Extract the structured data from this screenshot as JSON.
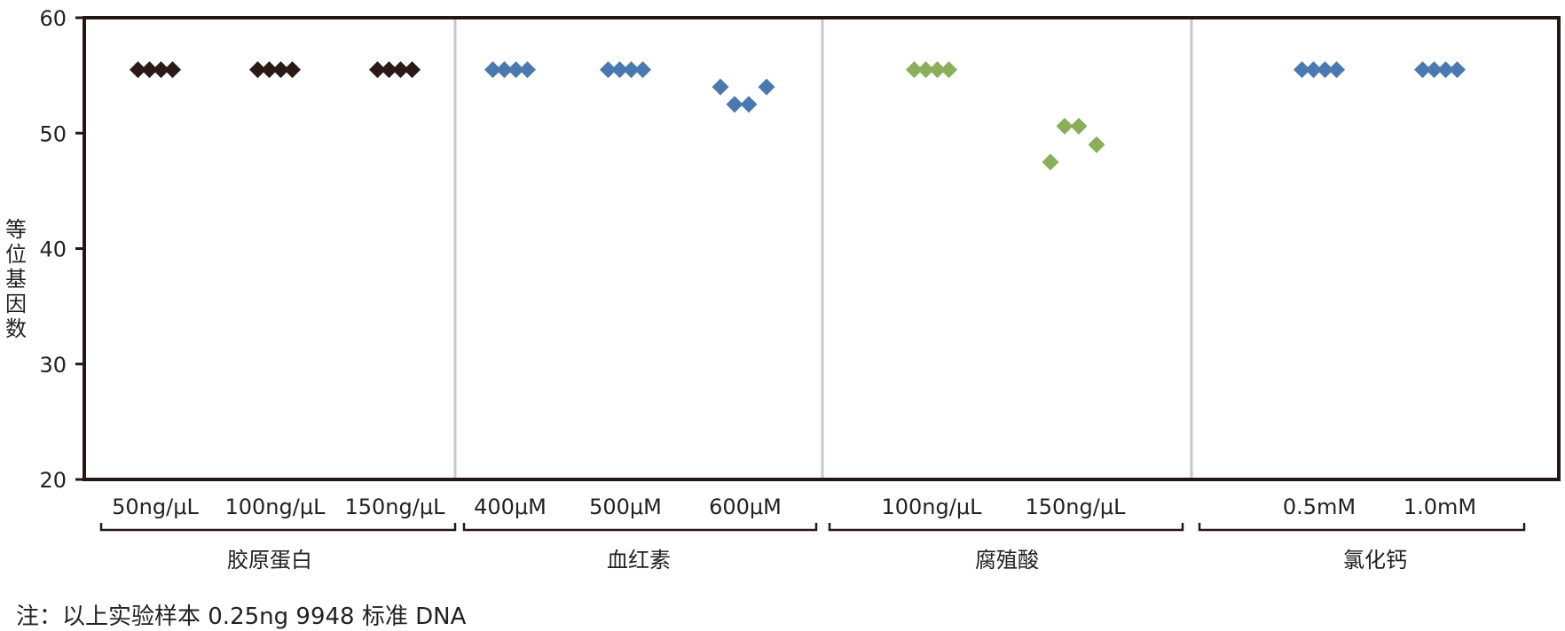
{
  "chart_data": {
    "type": "scatter",
    "ylabel": "等位基因数",
    "ylim": [
      20,
      60
    ],
    "yticks": [
      20,
      30,
      40,
      50,
      60
    ],
    "grid": false,
    "groups": [
      {
        "name": "胶原蛋白",
        "color": "#2a1a17",
        "conditions": [
          {
            "label": "50ng/μL",
            "values": [
              55.5,
              55.5,
              55.5,
              55.5
            ]
          },
          {
            "label": "100ng/μL",
            "values": [
              55.5,
              55.5,
              55.5,
              55.5
            ]
          },
          {
            "label": "150ng/μL",
            "values": [
              55.5,
              55.5,
              55.5,
              55.5
            ]
          }
        ]
      },
      {
        "name": "血红素",
        "color": "#4a79b0",
        "conditions": [
          {
            "label": "400μM",
            "values": [
              55.5,
              55.5,
              55.5,
              55.5
            ]
          },
          {
            "label": "500μM",
            "values": [
              55.5,
              55.5,
              55.5,
              55.5
            ]
          },
          {
            "label": "600μM",
            "values": [
              54.0,
              52.5,
              52.5,
              54.0
            ]
          }
        ]
      },
      {
        "name": "腐殖酸",
        "color": "#8aae5a",
        "conditions": [
          {
            "label": "100ng/μL",
            "values": [
              55.5,
              55.5,
              55.5,
              55.5
            ]
          },
          {
            "label": "150ng/μL",
            "values": [
              47.5,
              50.6,
              50.6,
              49.0
            ]
          }
        ]
      },
      {
        "name": "氯化钙",
        "color": "#4a79b0",
        "conditions": [
          {
            "label": "0.5mM",
            "values": [
              55.5,
              55.5,
              55.5,
              55.5
            ]
          },
          {
            "label": "1.0mM",
            "values": [
              55.5,
              55.5,
              55.5,
              55.5
            ]
          }
        ]
      }
    ]
  },
  "footnote": "注：以上实验样本 0.25ng  9948 标准 DNA"
}
